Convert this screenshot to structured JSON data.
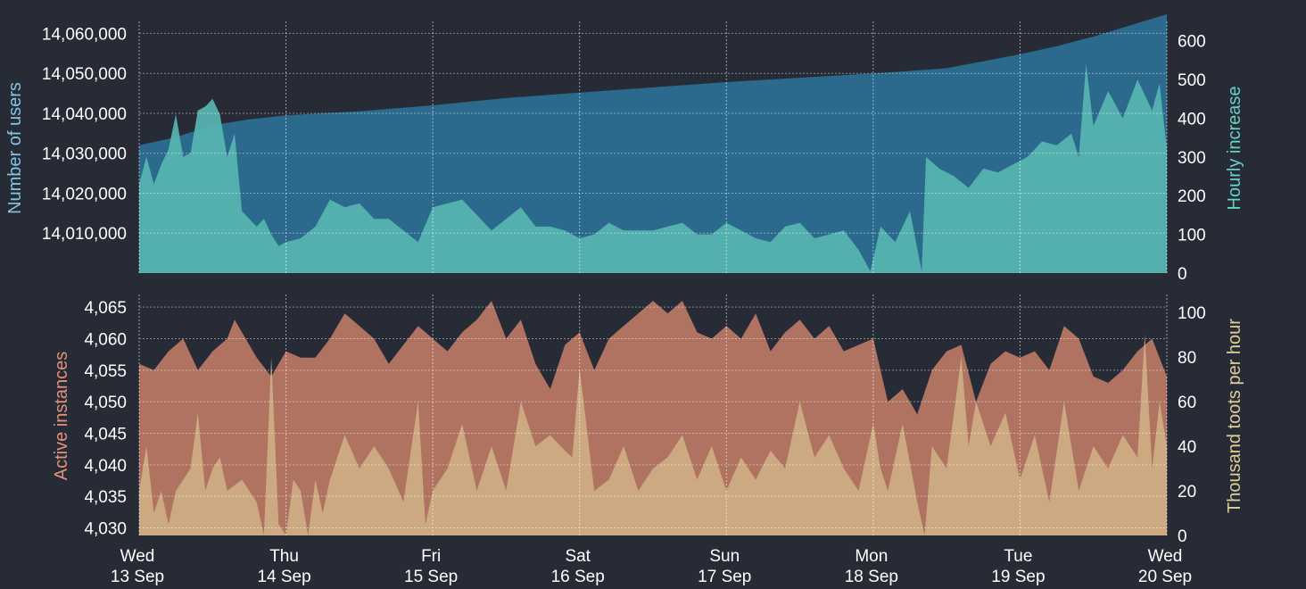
{
  "chart_data": [
    {
      "panel": "top",
      "type": "area",
      "x_ticks": [
        [
          "Wed",
          "13 Sep"
        ],
        [
          "Thu",
          "14 Sep"
        ],
        [
          "Fri",
          "15 Sep"
        ],
        [
          "Sat",
          "16 Sep"
        ],
        [
          "Sun",
          "17 Sep"
        ],
        [
          "Mon",
          "18 Sep"
        ],
        [
          "Tue",
          "19 Sep"
        ],
        [
          "Wed",
          "20 Sep"
        ]
      ],
      "x_range_days": [
        0,
        7
      ],
      "left_axis": {
        "label": "Number of users",
        "ticks": [
          14010000,
          14020000,
          14030000,
          14040000,
          14050000,
          14060000
        ],
        "tick_labels": [
          "14,010,000",
          "14,020,000",
          "14,030,000",
          "14,040,000",
          "14,050,000",
          "14,060,000"
        ],
        "ylim": [
          14000000,
          14063000
        ]
      },
      "right_axis": {
        "label": "Hourly increase",
        "ticks": [
          0,
          100,
          200,
          300,
          400,
          500,
          600
        ],
        "tick_labels": [
          "0",
          "100",
          "200",
          "300",
          "400",
          "500",
          "600"
        ],
        "ylim": [
          0,
          650
        ]
      },
      "series": [
        {
          "name": "Number of users",
          "axis": "left",
          "color": "#2b6a8c",
          "x": [
            0,
            0.25,
            0.5,
            0.75,
            1.0,
            1.5,
            2.0,
            2.5,
            3.0,
            3.5,
            4.0,
            4.5,
            5.0,
            5.25,
            5.5,
            5.75,
            6.0,
            6.25,
            6.5,
            6.75,
            7.0
          ],
          "values": [
            14032000,
            14034000,
            14037000,
            14038500,
            14039500,
            14040500,
            14042000,
            14043800,
            14045200,
            14046500,
            14047800,
            14048900,
            14050000,
            14050600,
            14051300,
            14053000,
            14054800,
            14056800,
            14059200,
            14062000,
            14065000
          ]
        },
        {
          "name": "Hourly increase",
          "axis": "right",
          "color": "#58b5b2",
          "x": [
            0,
            0.05,
            0.1,
            0.15,
            0.2,
            0.25,
            0.3,
            0.35,
            0.4,
            0.45,
            0.5,
            0.55,
            0.6,
            0.65,
            0.7,
            0.75,
            0.8,
            0.85,
            0.9,
            0.95,
            1.0,
            1.1,
            1.2,
            1.3,
            1.4,
            1.5,
            1.6,
            1.7,
            1.8,
            1.9,
            2.0,
            2.1,
            2.2,
            2.3,
            2.4,
            2.5,
            2.6,
            2.7,
            2.8,
            2.9,
            3.0,
            3.1,
            3.2,
            3.3,
            3.4,
            3.5,
            3.6,
            3.7,
            3.8,
            3.9,
            4.0,
            4.1,
            4.2,
            4.3,
            4.4,
            4.5,
            4.6,
            4.7,
            4.8,
            4.9,
            4.98,
            5.05,
            5.15,
            5.25,
            5.33,
            5.36,
            5.45,
            5.55,
            5.65,
            5.75,
            5.85,
            5.95,
            6.05,
            6.15,
            6.25,
            6.35,
            6.4,
            6.45,
            6.5,
            6.6,
            6.7,
            6.8,
            6.9,
            6.95,
            7.0
          ],
          "values": [
            230,
            300,
            230,
            280,
            320,
            410,
            300,
            310,
            420,
            430,
            450,
            410,
            300,
            360,
            160,
            140,
            120,
            140,
            100,
            70,
            80,
            90,
            120,
            190,
            170,
            180,
            140,
            140,
            110,
            80,
            170,
            180,
            190,
            150,
            110,
            140,
            170,
            120,
            120,
            110,
            90,
            100,
            130,
            110,
            110,
            110,
            120,
            130,
            100,
            100,
            130,
            110,
            90,
            80,
            120,
            130,
            90,
            100,
            110,
            60,
            5,
            120,
            80,
            160,
            5,
            300,
            270,
            250,
            220,
            270,
            260,
            280,
            300,
            340,
            330,
            360,
            300,
            540,
            380,
            470,
            400,
            500,
            420,
            490,
            320
          ]
        }
      ],
      "grid": true
    },
    {
      "panel": "bottom",
      "type": "area",
      "x_ticks": [
        [
          "Wed",
          "13 Sep"
        ],
        [
          "Thu",
          "14 Sep"
        ],
        [
          "Fri",
          "15 Sep"
        ],
        [
          "Sat",
          "16 Sep"
        ],
        [
          "Sun",
          "17 Sep"
        ],
        [
          "Mon",
          "18 Sep"
        ],
        [
          "Tue",
          "19 Sep"
        ],
        [
          "Wed",
          "20 Sep"
        ]
      ],
      "x_range_days": [
        0,
        7
      ],
      "left_axis": {
        "label": "Active instances",
        "ticks": [
          4030,
          4035,
          4040,
          4045,
          4050,
          4055,
          4060,
          4065
        ],
        "tick_labels": [
          "4,030",
          "4,035",
          "4,040",
          "4,045",
          "4,050",
          "4,055",
          "4,060",
          "4,065"
        ],
        "ylim": [
          4028.8,
          4067
        ]
      },
      "right_axis": {
        "label": "Thousand toots per hour",
        "ticks": [
          0,
          20,
          40,
          60,
          80,
          100
        ],
        "tick_labels": [
          "0",
          "20",
          "40",
          "60",
          "80",
          "100"
        ],
        "ylim": [
          0,
          108
        ]
      },
      "series": [
        {
          "name": "Active instances",
          "axis": "left",
          "color": "#b07362",
          "x": [
            0,
            0.1,
            0.2,
            0.3,
            0.4,
            0.5,
            0.6,
            0.65,
            0.7,
            0.8,
            0.9,
            1.0,
            1.1,
            1.2,
            1.3,
            1.4,
            1.5,
            1.6,
            1.7,
            1.8,
            1.9,
            2.0,
            2.1,
            2.2,
            2.3,
            2.4,
            2.5,
            2.6,
            2.7,
            2.8,
            2.9,
            3.0,
            3.1,
            3.2,
            3.3,
            3.4,
            3.5,
            3.6,
            3.7,
            3.8,
            3.9,
            4.0,
            4.1,
            4.2,
            4.3,
            4.4,
            4.5,
            4.6,
            4.7,
            4.8,
            4.9,
            5.0,
            5.05,
            5.1,
            5.2,
            5.3,
            5.4,
            5.5,
            5.6,
            5.7,
            5.8,
            5.9,
            6.0,
            6.1,
            6.2,
            6.3,
            6.4,
            6.5,
            6.6,
            6.7,
            6.8,
            6.9,
            7.0
          ],
          "values": [
            4056,
            4055,
            4058,
            4060,
            4055,
            4058,
            4060,
            4063,
            4061,
            4057,
            4054,
            4058,
            4057,
            4057,
            4060,
            4064,
            4062,
            4060,
            4056,
            4059,
            4062,
            4060,
            4058,
            4061,
            4063,
            4066,
            4060,
            4063,
            4056,
            4052,
            4059,
            4061,
            4055,
            4060,
            4062,
            4064,
            4066,
            4064,
            4066,
            4061,
            4060,
            4062,
            4060,
            4064,
            4058,
            4061,
            4063,
            4060,
            4062,
            4058,
            4059,
            4060,
            4055,
            4050,
            4052,
            4048,
            4055,
            4058,
            4059,
            4050,
            4056,
            4058,
            4057,
            4058,
            4055,
            4062,
            4060,
            4054,
            4053,
            4055,
            4058,
            4060,
            4054
          ]
        },
        {
          "name": "Thousand toots per hour",
          "axis": "right",
          "color": "#ceae83",
          "x": [
            0,
            0.05,
            0.1,
            0.15,
            0.2,
            0.25,
            0.3,
            0.35,
            0.4,
            0.45,
            0.5,
            0.55,
            0.6,
            0.7,
            0.8,
            0.85,
            0.9,
            0.95,
            1.0,
            1.05,
            1.1,
            1.15,
            1.2,
            1.25,
            1.3,
            1.4,
            1.5,
            1.6,
            1.7,
            1.8,
            1.9,
            1.95,
            2.0,
            2.1,
            2.2,
            2.3,
            2.4,
            2.5,
            2.6,
            2.7,
            2.8,
            2.9,
            2.95,
            3.0,
            3.1,
            3.2,
            3.3,
            3.4,
            3.5,
            3.6,
            3.7,
            3.8,
            3.9,
            4.0,
            4.1,
            4.2,
            4.3,
            4.4,
            4.5,
            4.6,
            4.7,
            4.8,
            4.9,
            5.0,
            5.05,
            5.1,
            5.2,
            5.3,
            5.35,
            5.4,
            5.5,
            5.6,
            5.65,
            5.7,
            5.8,
            5.9,
            6.0,
            6.1,
            6.2,
            6.3,
            6.4,
            6.5,
            6.6,
            6.7,
            6.8,
            6.85,
            6.9,
            6.95,
            7.0
          ],
          "values": [
            20,
            40,
            10,
            20,
            5,
            20,
            25,
            30,
            55,
            20,
            30,
            35,
            20,
            25,
            15,
            0,
            80,
            5,
            0,
            25,
            20,
            0,
            25,
            10,
            25,
            45,
            30,
            40,
            30,
            15,
            60,
            5,
            20,
            30,
            50,
            20,
            40,
            20,
            60,
            40,
            45,
            38,
            35,
            75,
            20,
            25,
            40,
            20,
            30,
            35,
            45,
            25,
            40,
            20,
            35,
            25,
            38,
            30,
            60,
            35,
            45,
            30,
            20,
            50,
            30,
            20,
            50,
            15,
            0,
            40,
            30,
            80,
            40,
            60,
            40,
            55,
            25,
            45,
            15,
            60,
            20,
            40,
            30,
            45,
            35,
            90,
            30,
            60,
            40
          ]
        }
      ],
      "grid": true
    }
  ]
}
